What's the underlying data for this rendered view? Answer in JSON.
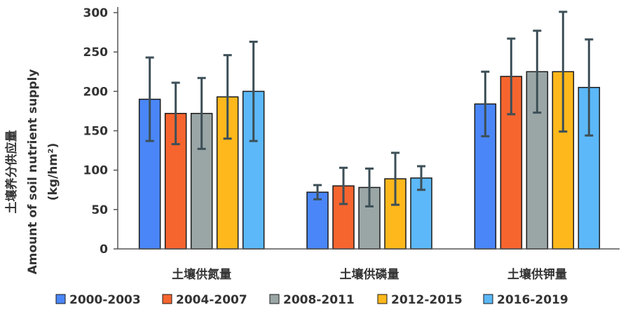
{
  "chart_data": {
    "type": "bar",
    "categories": [
      "土壤供氮量",
      "土壤供磷量",
      "土壤供钾量"
    ],
    "ylabel_lines": [
      "土壤养分供应量",
      "Amount of soil nutrient supply",
      "(kg/hm²)"
    ],
    "ylim": [
      0,
      300
    ],
    "yticks": [
      0,
      50,
      100,
      150,
      200,
      250,
      300
    ],
    "grid": false,
    "legend_position": "bottom",
    "series": [
      {
        "name": "2000-2003",
        "color": "#4A86F7",
        "values": [
          190,
          72,
          184
        ],
        "err": [
          53,
          9,
          41
        ]
      },
      {
        "name": "2004-2007",
        "color": "#F7652F",
        "values": [
          172,
          80,
          219
        ],
        "err": [
          39,
          23,
          48
        ]
      },
      {
        "name": "2008-2011",
        "color": "#9AA6A6",
        "values": [
          172,
          78,
          225
        ],
        "err": [
          45,
          24,
          52
        ]
      },
      {
        "name": "2012-2015",
        "color": "#FFB81C",
        "values": [
          193,
          89,
          225
        ],
        "err": [
          53,
          33,
          76
        ]
      },
      {
        "name": "2016-2019",
        "color": "#5CB8F8",
        "values": [
          200,
          90,
          205
        ],
        "err": [
          63,
          15,
          61
        ]
      }
    ]
  }
}
